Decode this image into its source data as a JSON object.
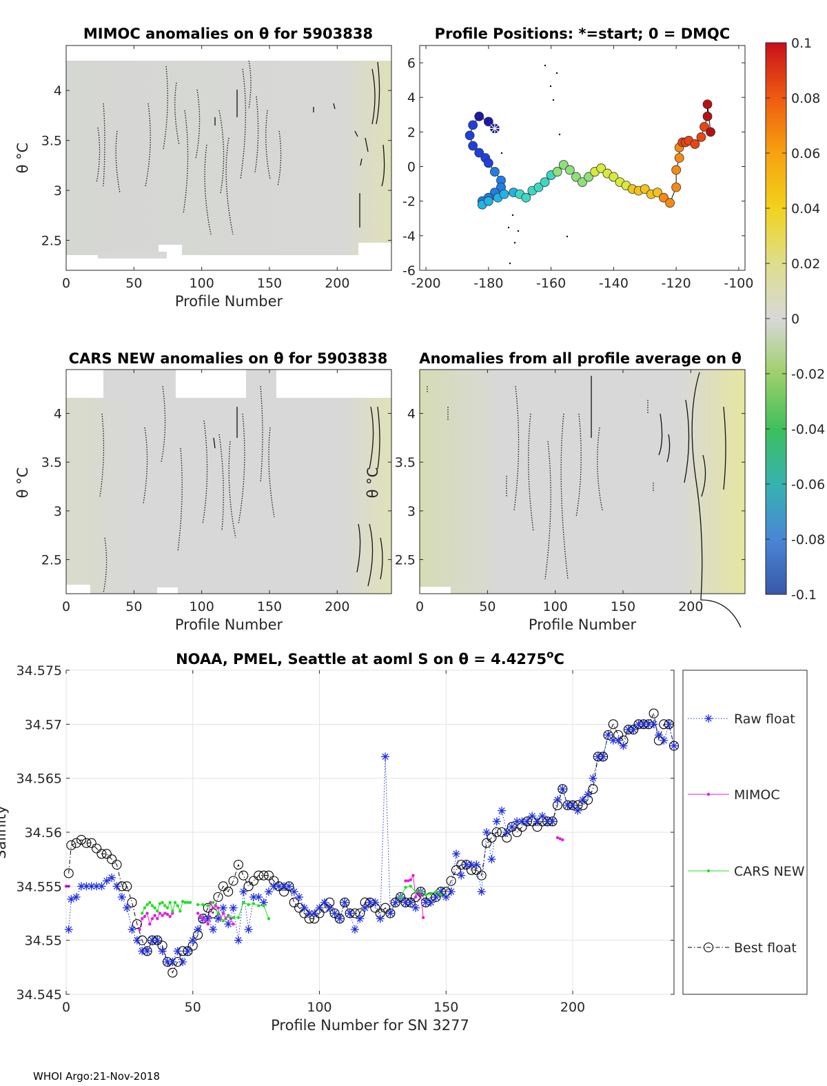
{
  "footer": "WHOI Argo:21-Nov-2018",
  "colorbar": {
    "min": -0.1,
    "max": 0.1,
    "ticks": [
      "0.1",
      "0.08",
      "0.06",
      "0.04",
      "0.02",
      "0",
      "-0.02",
      "-0.04",
      "-0.06",
      "-0.08",
      "-0.1"
    ],
    "tick_values": [
      0.1,
      0.08,
      0.06,
      0.04,
      0.02,
      0,
      -0.02,
      -0.04,
      -0.06,
      -0.08,
      -0.1
    ],
    "colors": [
      "#3a57a7",
      "#4a86d6",
      "#36b2b0",
      "#3fbf5c",
      "#9fd06a",
      "#d8d8d8",
      "#dede8c",
      "#f2d21c",
      "#f6a20f",
      "#ee5b11",
      "#c8101a"
    ]
  },
  "chart_data": [
    {
      "id": "mimoc",
      "type": "heatmap",
      "title": "MIMOC anomalies on θ  for 5903838",
      "xlabel": "Profile Number",
      "ylabel": "θ °C",
      "xlim": [
        0,
        240
      ],
      "ylim": [
        2.2,
        4.45
      ],
      "xticks": [
        0,
        50,
        100,
        150,
        200
      ],
      "yticks": [
        2.5,
        3,
        3.5,
        4
      ],
      "ytick_labels": [
        "2.5",
        "3",
        "3.5",
        "4"
      ],
      "field": "near-zero anomalies (grey), slightly negative near profiles 220-240"
    },
    {
      "id": "positions",
      "type": "scatter",
      "title": "Profile Positions: *=start; 0 = DMQC",
      "xlim": [
        -202,
        -98
      ],
      "ylim": [
        -6,
        7
      ],
      "xticks": [
        -200,
        -180,
        -160,
        -140,
        -120,
        -100
      ],
      "yticks": [
        -6,
        -4,
        -2,
        0,
        2,
        4,
        6
      ],
      "track": {
        "x": [
          -178,
          -180,
          -183,
          -185,
          -186,
          -185,
          -183,
          -181,
          -180,
          -178,
          -176,
          -176,
          -178,
          -180,
          -182,
          -182,
          -180,
          -177,
          -175,
          -172,
          -170,
          -168,
          -166,
          -164,
          -162,
          -160,
          -158,
          -156,
          -154,
          -152,
          -150,
          -148,
          -146,
          -144,
          -142,
          -140,
          -138,
          -136,
          -134,
          -132,
          -130,
          -128,
          -126,
          -124,
          -122,
          -120,
          -120,
          -119,
          -119,
          -118,
          -117,
          -116,
          -114,
          -112,
          -111,
          -110,
          -110,
          -109
        ],
        "y": [
          2.2,
          2.6,
          2.9,
          2.4,
          1.8,
          1.2,
          0.8,
          0.5,
          0.2,
          -0.3,
          -0.8,
          -1.2,
          -1.5,
          -1.8,
          -2.0,
          -2.2,
          -2.0,
          -1.8,
          -1.6,
          -1.5,
          -1.6,
          -1.8,
          -1.4,
          -1.2,
          -0.9,
          -0.5,
          -0.3,
          0.1,
          -0.2,
          -0.6,
          -0.9,
          -0.6,
          -0.3,
          -0.1,
          -0.4,
          -0.6,
          -0.9,
          -1.1,
          -1.3,
          -1.4,
          -1.3,
          -1.6,
          -1.5,
          -1.8,
          -2.1,
          -1.2,
          -0.2,
          0.5,
          1.1,
          1.4,
          1.4,
          1.5,
          1.3,
          1.7,
          2.3,
          2.9,
          3.6,
          2.0
        ],
        "start": [
          -178,
          2.2
        ]
      }
    },
    {
      "id": "cars",
      "type": "heatmap",
      "title": "CARS NEW anomalies on θ for 5903838",
      "xlabel": "Profile Number",
      "ylabel": "θ °C",
      "xlim": [
        0,
        240
      ],
      "ylim": [
        2.15,
        4.45
      ],
      "xticks": [
        0,
        50,
        100,
        150,
        200
      ],
      "yticks": [
        2.5,
        3,
        3.5,
        4
      ],
      "ytick_labels": [
        "2.5",
        "3",
        "3.5",
        "4"
      ]
    },
    {
      "id": "allavg",
      "type": "heatmap",
      "title": "Anomalies from all profile average on θ",
      "xlabel": "Profile Number",
      "ylabel": "θ °C",
      "xlim": [
        0,
        240
      ],
      "ylim": [
        2.15,
        4.45
      ],
      "xticks": [
        0,
        50,
        100,
        150,
        200
      ],
      "yticks": [
        2.5,
        3,
        3.5,
        4
      ],
      "ytick_labels": [
        "2.5",
        "3",
        "3.5",
        "4"
      ]
    },
    {
      "id": "salinity",
      "type": "line",
      "title": "NOAA, PMEL, Seattle at aoml S on θ = 4.4275°C",
      "title_main": "NOAA, PMEL, Seattle at aoml S on θ = 4.4275",
      "title_sup": "o",
      "title_end": "C",
      "xlabel": "Profile Number for SN 3277",
      "ylabel": "Salinity",
      "xlim": [
        0,
        240
      ],
      "ylim": [
        34.545,
        34.575
      ],
      "xticks": [
        0,
        50,
        100,
        150,
        200
      ],
      "yticks": [
        34.545,
        34.55,
        34.555,
        34.56,
        34.565,
        34.57,
        34.575
      ],
      "ytick_labels": [
        "34.545",
        "34.55",
        "34.555",
        "34.56",
        "34.565",
        "34.57",
        "34.575"
      ],
      "grid": true,
      "legend_position": "outside-right",
      "series": [
        {
          "name": "Raw float",
          "color": "#1f2fe0",
          "marker": "asterisk",
          "line": "dotted",
          "x": [
            1,
            2,
            4,
            6,
            8,
            10,
            12,
            14,
            16,
            18,
            20,
            22,
            24,
            26,
            28,
            30,
            32,
            34,
            36,
            38,
            40,
            42,
            44,
            46,
            48,
            50,
            52,
            54,
            56,
            58,
            60,
            62,
            64,
            66,
            68,
            70,
            72,
            74,
            76,
            78,
            80,
            82,
            84,
            86,
            88,
            90,
            92,
            94,
            96,
            98,
            100,
            102,
            104,
            106,
            108,
            110,
            112,
            114,
            116,
            118,
            120,
            122,
            124,
            126,
            128,
            130,
            132,
            134,
            136,
            138,
            140,
            142,
            144,
            146,
            148,
            150,
            152,
            154,
            156,
            158,
            160,
            162,
            164,
            166,
            168,
            170,
            172,
            174,
            176,
            178,
            180,
            182,
            184,
            186,
            188,
            190,
            192,
            194,
            196,
            198,
            200,
            202,
            204,
            206,
            208,
            210,
            212,
            214,
            216,
            218,
            220,
            222,
            224,
            226,
            228,
            230,
            232,
            234,
            236,
            238,
            240
          ],
          "y": [
            34.551,
            34.5538,
            34.554,
            34.555,
            34.555,
            34.555,
            34.555,
            34.555,
            34.5555,
            34.5558,
            34.555,
            34.554,
            34.553,
            34.551,
            34.55,
            34.549,
            34.549,
            34.55,
            34.55,
            34.549,
            34.548,
            34.548,
            34.549,
            34.548,
            34.549,
            34.55,
            34.551,
            34.552,
            34.552,
            34.551,
            34.552,
            34.553,
            34.5515,
            34.553,
            34.55,
            34.5545,
            34.551,
            34.554,
            34.554,
            34.5535,
            34.5545,
            34.555,
            34.555,
            34.555,
            34.555,
            34.5545,
            34.554,
            34.553,
            34.5525,
            34.5525,
            34.553,
            34.5535,
            34.553,
            34.5525,
            34.552,
            34.5535,
            34.5525,
            34.551,
            34.552,
            34.553,
            34.5535,
            34.5535,
            34.552,
            34.567,
            34.5525,
            34.5535,
            34.554,
            34.5535,
            34.5535,
            34.553,
            34.5545,
            34.5535,
            34.5535,
            34.554,
            34.5545,
            34.554,
            34.5545,
            34.558,
            34.556,
            34.557,
            34.557,
            34.557,
            34.5545,
            34.56,
            34.5575,
            34.561,
            34.562,
            34.56,
            34.5605,
            34.561,
            34.561,
            34.561,
            34.5615,
            34.561,
            34.5615,
            34.561,
            34.561,
            34.563,
            34.564,
            34.5625,
            34.5625,
            34.562,
            34.563,
            34.5635,
            34.565,
            34.567,
            34.567,
            34.569,
            34.5685,
            34.5685,
            34.568,
            34.5695,
            34.5695,
            34.57,
            34.57,
            34.57,
            34.57,
            34.569,
            34.5685,
            34.57,
            34.568
          ],
          "spike_note": "single outlier 34.567 at profile 126"
        },
        {
          "name": "MIMOC",
          "color": "#e21ce2",
          "marker": "dot",
          "line": "solid",
          "segments": [
            {
              "x": [
                0,
                1
              ],
              "y": [
                34.555,
                34.555
              ]
            },
            {
              "x": [
                29,
                30,
                31,
                32,
                33,
                34,
                35,
                36,
                37,
                38,
                39,
                40,
                41,
                42
              ],
              "y": [
                34.551,
                34.552,
                34.5522,
                34.5525,
                34.5515,
                34.552,
                34.5523,
                34.552,
                34.5525,
                34.5523,
                34.5525,
                34.5524,
                34.5522,
                34.5525
              ]
            },
            {
              "x": [
                52,
                53,
                54,
                55,
                56,
                57,
                58,
                59,
                60,
                61,
                62,
                63,
                64,
                65,
                66
              ],
              "y": [
                34.5525,
                34.5522,
                34.552,
                34.5518,
                34.5515,
                34.5535,
                34.553,
                34.5532,
                34.553,
                34.552,
                34.5525,
                34.552,
                34.5523,
                34.552,
                34.5515
              ]
            },
            {
              "x": [
                134,
                135,
                136,
                137,
                138,
                139,
                140,
                141
              ],
              "y": [
                34.5555,
                34.5555,
                34.5556,
                34.556,
                34.554,
                34.5545,
                34.5542,
                34.5521
              ]
            },
            {
              "x": [
                194,
                195,
                196
              ],
              "y": [
                34.5595,
                34.5594,
                34.5593
              ]
            }
          ]
        },
        {
          "name": "CARS NEW",
          "color": "#1fe01f",
          "marker": "dot",
          "line": "solid",
          "segments": [
            {
              "x": [
                30,
                31,
                32,
                33,
                34,
                35,
                36,
                37,
                38,
                39,
                40,
                41,
                42,
                43,
                44,
                45,
                46,
                47,
                48,
                49
              ],
              "y": [
                34.5525,
                34.553,
                34.5533,
                34.5535,
                34.5532,
                34.553,
                34.5527,
                34.5534,
                34.5535,
                34.5532,
                34.553,
                34.5535,
                34.5527,
                34.5535,
                34.5532,
                34.5527,
                34.5536,
                34.5535,
                34.5535,
                34.5535
              ]
            },
            {
              "x": [
                52,
                54,
                56,
                58,
                60,
                62,
                64,
                66,
                68,
                70,
                72,
                74,
                76,
                78,
                80
              ],
              "y": [
                34.5533,
                34.5533,
                34.5532,
                34.5535,
                34.5525,
                34.5518,
                34.5522,
                34.5521,
                34.5521,
                34.5535,
                34.5533,
                34.5534,
                34.5532,
                34.5532,
                34.552
              ]
            },
            {
              "x": [
                132,
                134,
                136,
                138,
                140,
                142,
                144,
                146,
                148
              ],
              "y": [
                34.554,
                34.5549,
                34.555,
                34.5545,
                34.5545,
                34.5542,
                34.5543,
                34.5545,
                34.5542
              ]
            }
          ]
        },
        {
          "name": "Best float",
          "color": "#000000",
          "marker": "circle",
          "line": "dashdot",
          "x": [
            1,
            2,
            4,
            6,
            8,
            10,
            12,
            14,
            16,
            18,
            20,
            22,
            24,
            26,
            28,
            30,
            32,
            34,
            36,
            38,
            40,
            42,
            44,
            46,
            48,
            50,
            52,
            54,
            56,
            58,
            60,
            62,
            64,
            66,
            68,
            70,
            72,
            74,
            76,
            78,
            80,
            82,
            84,
            86,
            88,
            90,
            92,
            94,
            96,
            98,
            100,
            102,
            104,
            106,
            108,
            110,
            112,
            114,
            116,
            118,
            120,
            122,
            124,
            126,
            128,
            130,
            132,
            134,
            136,
            138,
            140,
            142,
            144,
            146,
            148,
            150,
            152,
            154,
            156,
            158,
            160,
            162,
            164,
            166,
            168,
            170,
            172,
            174,
            176,
            178,
            180,
            182,
            184,
            186,
            188,
            190,
            192,
            194,
            196,
            198,
            200,
            202,
            204,
            206,
            208,
            210,
            212,
            214,
            216,
            218,
            220,
            222,
            224,
            226,
            228,
            230,
            232,
            234,
            236,
            238,
            240
          ],
          "y": [
            34.5562,
            34.5588,
            34.559,
            34.5593,
            34.559,
            34.559,
            34.5585,
            34.558,
            34.558,
            34.5575,
            34.557,
            34.555,
            34.555,
            34.5535,
            34.5515,
            34.55,
            34.549,
            34.55,
            34.55,
            34.5495,
            34.548,
            34.547,
            34.548,
            34.549,
            34.549,
            34.5495,
            34.5505,
            34.552,
            34.553,
            34.5525,
            34.554,
            34.555,
            34.5545,
            34.5555,
            34.557,
            34.556,
            34.555,
            34.5555,
            34.556,
            34.556,
            34.556,
            34.5555,
            34.555,
            34.5545,
            34.555,
            34.5535,
            34.553,
            34.5525,
            34.552,
            34.552,
            34.5525,
            34.553,
            34.5535,
            34.5525,
            34.552,
            34.5535,
            34.5525,
            34.5525,
            34.5525,
            34.5535,
            34.5535,
            34.553,
            34.5525,
            34.553,
            34.5525,
            34.5535,
            34.554,
            34.5535,
            34.5535,
            34.554,
            34.5545,
            34.5535,
            34.554,
            34.554,
            34.5545,
            34.5545,
            34.5555,
            34.5565,
            34.557,
            34.557,
            34.5565,
            34.5565,
            34.556,
            34.559,
            34.5595,
            34.56,
            34.56,
            34.5595,
            34.5605,
            34.56,
            34.5605,
            34.561,
            34.561,
            34.5605,
            34.561,
            34.561,
            34.561,
            34.5625,
            34.564,
            34.5625,
            34.5625,
            34.5625,
            34.5625,
            34.563,
            34.564,
            34.567,
            34.567,
            34.569,
            34.57,
            34.569,
            34.5685,
            34.5695,
            34.5695,
            34.57,
            34.57,
            34.57,
            34.571,
            34.5685,
            34.57,
            34.57,
            34.568
          ]
        }
      ]
    }
  ]
}
